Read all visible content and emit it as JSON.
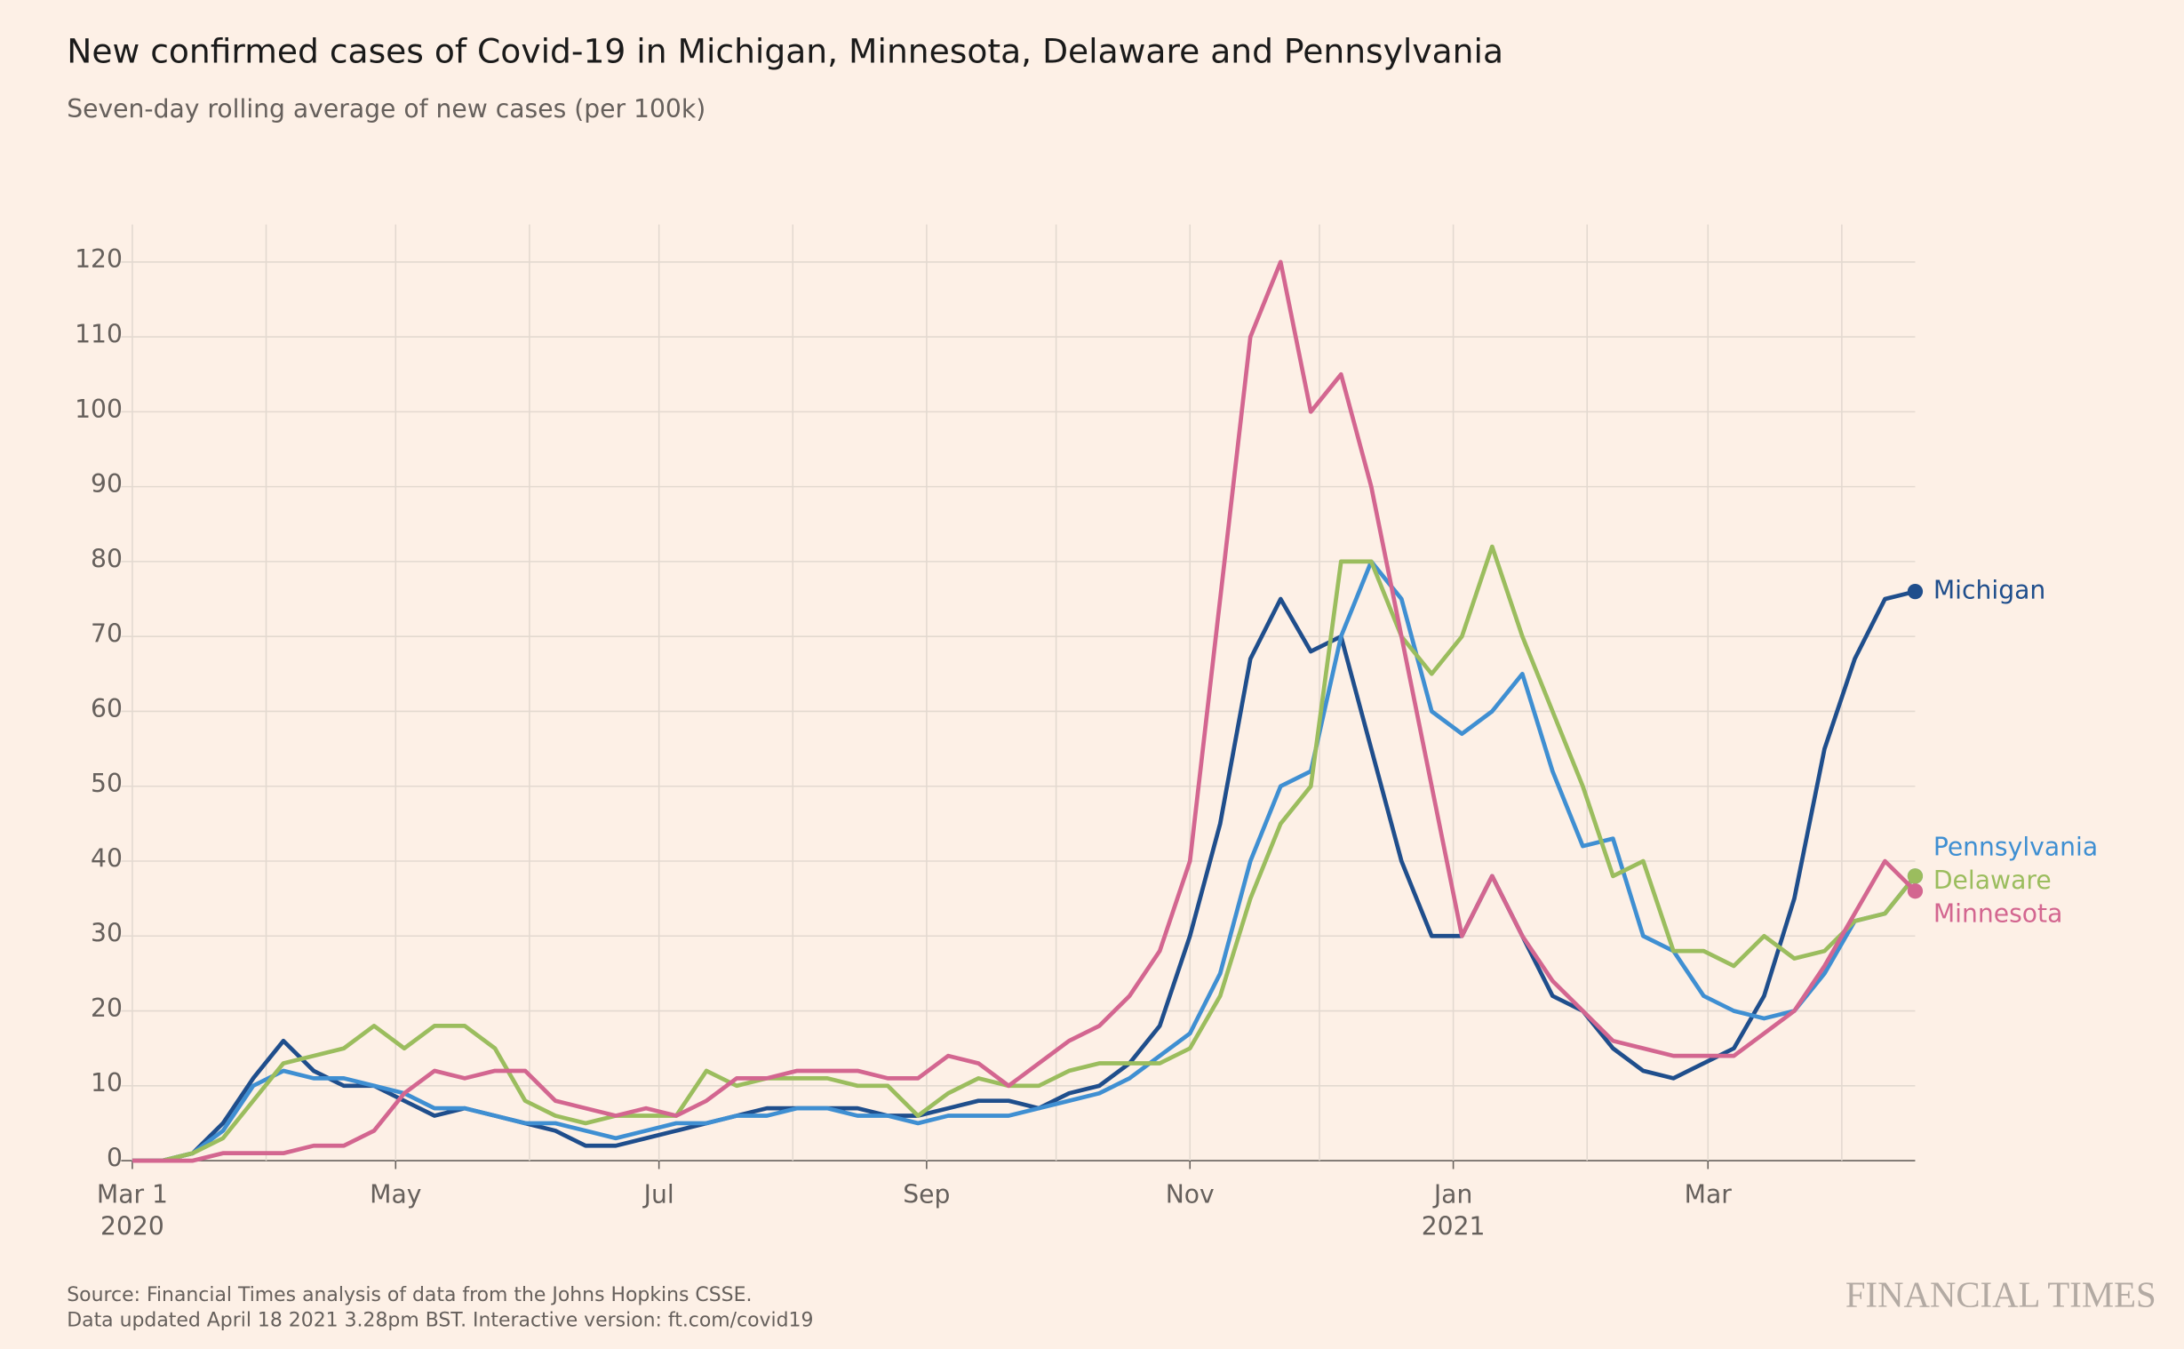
{
  "chart_data": {
    "type": "line",
    "title": "New confirmed cases of Covid-19 in Michigan, Minnesota, Delaware and Pennsylvania",
    "subtitle": "Seven-day rolling average of new cases (per 100k)",
    "source": "Source: Financial Times analysis of data from the Johns Hopkins CSSE.",
    "note": "Data updated April 18 2021 3.28pm BST. Interactive version: ft.com/covid19",
    "brand": "FINANCIAL TIMES",
    "x": [
      "2020-03-01",
      "2020-03-08",
      "2020-03-15",
      "2020-03-22",
      "2020-03-29",
      "2020-04-05",
      "2020-04-12",
      "2020-04-19",
      "2020-04-26",
      "2020-05-03",
      "2020-05-10",
      "2020-05-17",
      "2020-05-24",
      "2020-05-31",
      "2020-06-07",
      "2020-06-14",
      "2020-06-21",
      "2020-06-28",
      "2020-07-05",
      "2020-07-12",
      "2020-07-19",
      "2020-07-26",
      "2020-08-02",
      "2020-08-09",
      "2020-08-16",
      "2020-08-23",
      "2020-08-30",
      "2020-09-06",
      "2020-09-13",
      "2020-09-20",
      "2020-09-27",
      "2020-10-04",
      "2020-10-11",
      "2020-10-18",
      "2020-10-25",
      "2020-11-01",
      "2020-11-08",
      "2020-11-15",
      "2020-11-22",
      "2020-11-29",
      "2020-12-06",
      "2020-12-13",
      "2020-12-20",
      "2020-12-27",
      "2021-01-03",
      "2021-01-10",
      "2021-01-17",
      "2021-01-24",
      "2021-01-31",
      "2021-02-07",
      "2021-02-14",
      "2021-02-21",
      "2021-02-28",
      "2021-03-07",
      "2021-03-14",
      "2021-03-21",
      "2021-03-28",
      "2021-04-04",
      "2021-04-11",
      "2021-04-18"
    ],
    "series": [
      {
        "name": "Michigan",
        "color": "#1f4e8c",
        "values": [
          0,
          0,
          1,
          5,
          11,
          16,
          12,
          10,
          10,
          8,
          6,
          7,
          6,
          5,
          4,
          2,
          2,
          3,
          4,
          5,
          6,
          7,
          7,
          7,
          7,
          6,
          6,
          7,
          8,
          8,
          7,
          9,
          10,
          13,
          18,
          30,
          45,
          67,
          75,
          68,
          70,
          55,
          40,
          30,
          30,
          38,
          30,
          22,
          20,
          15,
          12,
          11,
          13,
          15,
          22,
          35,
          55,
          67,
          75,
          76
        ]
      },
      {
        "name": "Pennsylvania",
        "color": "#3f8fd2",
        "values": [
          0,
          0,
          1,
          4,
          10,
          12,
          11,
          11,
          10,
          9,
          7,
          7,
          6,
          5,
          5,
          4,
          3,
          4,
          5,
          5,
          6,
          6,
          7,
          7,
          6,
          6,
          5,
          6,
          6,
          6,
          7,
          8,
          9,
          11,
          14,
          17,
          25,
          40,
          50,
          52,
          70,
          80,
          75,
          60,
          57,
          60,
          65,
          52,
          42,
          43,
          30,
          28,
          22,
          20,
          19,
          20,
          25,
          32,
          33,
          38
        ]
      },
      {
        "name": "Delaware",
        "color": "#9bbd5e",
        "values": [
          0,
          0,
          1,
          3,
          8,
          13,
          14,
          15,
          18,
          15,
          18,
          18,
          15,
          8,
          6,
          5,
          6,
          6,
          6,
          12,
          10,
          11,
          11,
          11,
          10,
          10,
          6,
          9,
          11,
          10,
          10,
          12,
          13,
          13,
          13,
          15,
          22,
          35,
          45,
          50,
          80,
          80,
          70,
          65,
          70,
          82,
          70,
          60,
          50,
          38,
          40,
          28,
          28,
          26,
          30,
          27,
          28,
          32,
          33,
          38
        ]
      },
      {
        "name": "Minnesota",
        "color": "#d36690",
        "values": [
          0,
          0,
          0,
          1,
          1,
          1,
          2,
          2,
          4,
          9,
          12,
          11,
          12,
          12,
          8,
          7,
          6,
          7,
          6,
          8,
          11,
          11,
          12,
          12,
          12,
          11,
          11,
          14,
          13,
          10,
          13,
          16,
          18,
          22,
          28,
          40,
          75,
          110,
          120,
          100,
          105,
          90,
          70,
          50,
          30,
          38,
          30,
          24,
          20,
          16,
          15,
          14,
          14,
          14,
          17,
          20,
          26,
          33,
          40,
          36
        ]
      }
    ],
    "xlim": [
      "2020-03-01",
      "2021-04-18"
    ],
    "xticks": [
      {
        "value": "2020-03-01",
        "label": "Mar 1\n2020"
      },
      {
        "value": "2020-04-01",
        "label": null
      },
      {
        "value": "2020-05-01",
        "label": "May"
      },
      {
        "value": "2020-06-01",
        "label": null
      },
      {
        "value": "2020-07-01",
        "label": "Jul"
      },
      {
        "value": "2020-08-01",
        "label": null
      },
      {
        "value": "2020-09-01",
        "label": "Sep"
      },
      {
        "value": "2020-10-01",
        "label": null
      },
      {
        "value": "2020-11-01",
        "label": "Nov"
      },
      {
        "value": "2020-12-01",
        "label": null
      },
      {
        "value": "2021-01-01",
        "label": "Jan\n2021"
      },
      {
        "value": "2021-02-01",
        "label": null
      },
      {
        "value": "2021-03-01",
        "label": "Mar"
      },
      {
        "value": "2021-04-01",
        "label": null
      }
    ],
    "ylim": [
      0,
      125
    ],
    "yticks": [
      0,
      10,
      20,
      30,
      40,
      50,
      60,
      70,
      80,
      90,
      100,
      110,
      120
    ],
    "grid": true
  }
}
